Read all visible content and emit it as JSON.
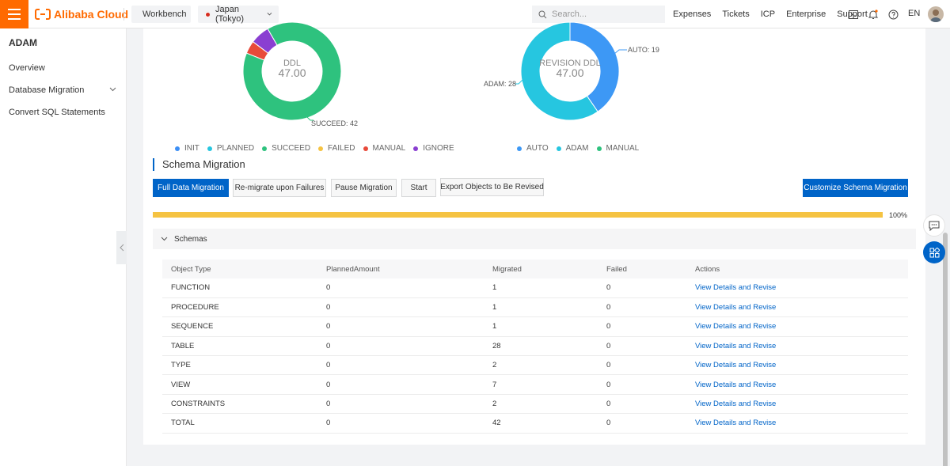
{
  "header": {
    "logo_text": "Alibaba Cloud",
    "workbench": "Workbench",
    "region": "Japan (Tokyo)",
    "search_placeholder": "Search...",
    "links": [
      "Expenses",
      "Tickets",
      "ICP",
      "Enterprise",
      "Support"
    ],
    "lang": "EN"
  },
  "sidebar": {
    "title": "ADAM",
    "items": [
      {
        "label": "Overview"
      },
      {
        "label": "Database Migration"
      },
      {
        "label": "Convert SQL Statements"
      }
    ]
  },
  "ddl_chart": {
    "type": "pie",
    "center_label": "DDL",
    "center_value": "47.00",
    "slices": [
      {
        "name": "INIT",
        "value": 0,
        "color": "#3d8ff5"
      },
      {
        "name": "PLANNED",
        "value": 0,
        "color": "#26c6e0"
      },
      {
        "name": "SUCCEED",
        "value": 42,
        "color": "#2ec27e"
      },
      {
        "name": "FAILED",
        "value": 0,
        "color": "#f5c342"
      },
      {
        "name": "MANUAL",
        "value": 2,
        "color": "#e84a3a"
      },
      {
        "name": "IGNORE",
        "value": 3,
        "color": "#8a3fd1"
      }
    ],
    "label_text": "SUCCEED: 42"
  },
  "revision_chart": {
    "type": "pie",
    "center_label": "REVISION DDL",
    "center_value": "47.00",
    "slices": [
      {
        "name": "AUTO",
        "value": 19,
        "color": "#3d98f5"
      },
      {
        "name": "ADAM",
        "value": 28,
        "color": "#26c6e0"
      },
      {
        "name": "MANUAL",
        "value": 0,
        "color": "#2ec27e"
      }
    ],
    "label_auto": "AUTO: 19",
    "label_adam": "ADAM: 28"
  },
  "schema_section": {
    "title": "Schema Migration",
    "buttons": {
      "full_data": "Full Data Migration",
      "remigrate": "Re-migrate upon Failures",
      "pause": "Pause Migration",
      "start": "Start",
      "export": "Export Objects to Be Revised",
      "customize": "Customize Schema Migration"
    },
    "progress_percent": 100,
    "progress_label": "100%",
    "accordion_label": "Schemas"
  },
  "table": {
    "headers": [
      "Object Type",
      "PlannedAmount",
      "Migrated",
      "Failed",
      "Actions"
    ],
    "rows": [
      [
        "FUNCTION",
        "0",
        "1",
        "0",
        "View Details and Revise"
      ],
      [
        "PROCEDURE",
        "0",
        "1",
        "0",
        "View Details and Revise"
      ],
      [
        "SEQUENCE",
        "0",
        "1",
        "0",
        "View Details and Revise"
      ],
      [
        "TABLE",
        "0",
        "28",
        "0",
        "View Details and Revise"
      ],
      [
        "TYPE",
        "0",
        "2",
        "0",
        "View Details and Revise"
      ],
      [
        "VIEW",
        "0",
        "7",
        "0",
        "View Details and Revise"
      ],
      [
        "CONSTRAINTS",
        "0",
        "2",
        "0",
        "View Details and Revise"
      ],
      [
        "TOTAL",
        "0",
        "42",
        "0",
        "View Details and Revise"
      ]
    ]
  },
  "colors": {
    "accent": "#ff6a00",
    "primary": "#0064c8",
    "progress": "#f5c342"
  }
}
